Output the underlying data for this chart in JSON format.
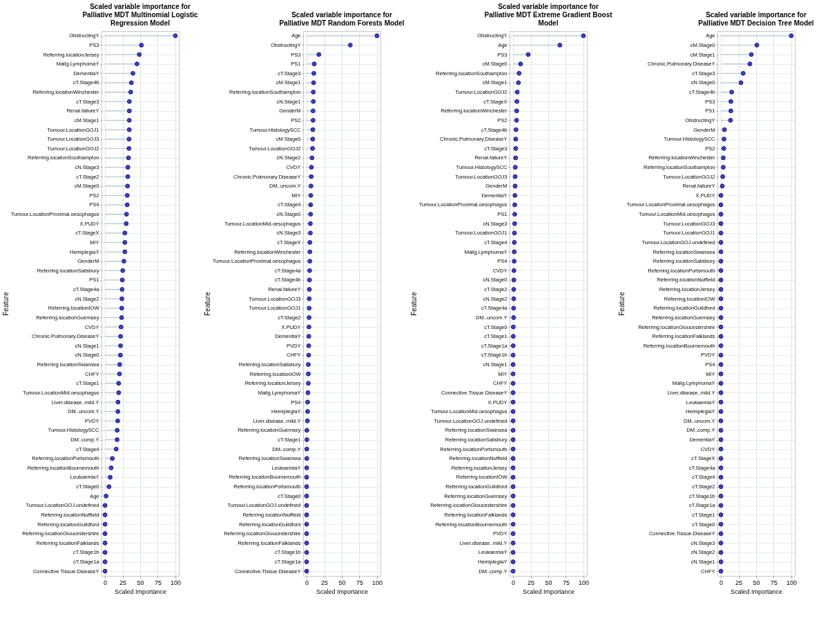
{
  "chart_data": [
    {
      "type": "lollipop",
      "orientation": "horizontal",
      "title": "Scaled variable importance for Palliative MDT Multinomial Logistic Regression Model",
      "xlabel": "Scaled Importance",
      "ylabel": "Feature",
      "xlim": [
        -5,
        105
      ],
      "xticks": [
        0,
        25,
        50,
        75,
        100
      ],
      "grid": true,
      "categories": [
        "ObstructingY",
        "PS3",
        "Referring.locationJersey",
        "Malig.LymphomaY",
        "DementiaY",
        "cT.Stage4b",
        "Referring.locationWinchester",
        "cT.Stage3",
        "Renal.failureY",
        "cM.Stage1",
        "Tumour.LocationGOJ1",
        "Tumour.LocationGOJ3",
        "Tumour.LocationGOJ2",
        "Referring.locationSouthampton",
        "cN.Stage3",
        "cT.Stage2",
        "cM.Stage0",
        "PS2",
        "PS4",
        "Tumour.LocationProximal.oesophagus",
        "X.PUDY",
        "cT.StageX",
        "MIY",
        "HemiplegiaY",
        "GenderM",
        "Referring.locationSalisbury",
        "PS1",
        "cT.Stage4a",
        "cN.Stage2",
        "Referring.locationIOW",
        "Referring.locationGuernsey",
        "CVDY",
        "Chronic.Pulmonary.DiseaseY",
        "cN.Stage1",
        "cN.Stage0",
        "Referring.locationSwansea",
        "CHFY",
        "cT.Stage1",
        "Tumour.LocationMid.oesophagus",
        "Liver.disease..mild.Y",
        "DM..uncom.Y",
        "PVDY",
        "Tumour.HistologySCC",
        "DM..comp.Y",
        "cT.Stage4",
        "Referring.locationPortsmouth",
        "Referring.locationBournemouth",
        "LeukaemiaY",
        "cT.Stage0",
        "Age",
        "Tumour.LocationGOJ.undefined",
        "Referring.locationNuffield",
        "Referring.locationGuildford",
        "Referring.locationGloucestershire",
        "Referring.locationFalklands",
        "cT.Stage1b",
        "cT.Stage1a",
        "Connective.Tissue.DiseaseY"
      ],
      "series": [
        {
          "color": "#3c3cd6",
          "values": [
            100,
            51.8,
            48.7,
            45.5,
            39.7,
            37.5,
            36.5,
            34.6,
            34.6,
            34.5,
            34.5,
            34.2,
            34.0,
            33.4,
            32.5,
            32.4,
            32.0,
            31.6,
            31.5,
            30.6,
            30.2,
            28.2,
            28.2,
            28.2,
            26.9,
            25.2,
            24.6,
            24.3,
            24.0,
            23.8,
            23.6,
            22.8,
            22.1,
            22.1,
            21.9,
            20.9,
            20.6,
            19.4,
            19.4,
            18.5,
            18.3,
            18.1,
            17.3,
            17.2,
            15.9,
            10.4,
            8.7,
            7.3,
            5.6,
            1.5,
            0,
            0,
            0,
            0,
            0,
            0,
            0,
            0
          ]
        }
      ]
    },
    {
      "type": "lollipop",
      "orientation": "horizontal",
      "title": "Scaled variable importance for Palliative MDT Random Forests Model",
      "xlabel": "Scaled Importance",
      "ylabel": "Feature",
      "xlim": [
        -5,
        105
      ],
      "xticks": [
        0,
        25,
        50,
        75,
        100
      ],
      "grid": true,
      "categories": [
        "Age",
        "ObstructingY",
        "PS3",
        "PS1",
        "cT.Stage3",
        "cM.Stage1",
        "Referring.locationSouthampton",
        "cN.Stage1",
        "GenderM",
        "PS2",
        "Tumour.HistologySCC",
        "cM.Stage0",
        "Tumour.LocationGOJ2",
        "cN.Stage2",
        "CVDY",
        "Chronic.Pulmonary.DiseaseY",
        "DM..uncom.Y",
        "MIY",
        "cT.Stage4",
        "cN.Stage0",
        "Tumour.LocationMid.oesophagus",
        "cN.Stage3",
        "cT.StageX",
        "Referring.locationWinchester",
        "Tumour.LocationProximal.oesophagus",
        "cT.Stage4a",
        "cT.Stage4b",
        "Renal.failureY",
        "Tumour.LocationGOJ3",
        "Tumour.LocationGOJ1",
        "cT.Stage2",
        "X.PUDY",
        "DementiaY",
        "PVDY",
        "CHFY",
        "Referring.locationSalisbury",
        "Referring.locationIOW",
        "Referring.locationJersey",
        "Malig.LymphomaY",
        "PS4",
        "HemiplegiaY",
        "Liver.disease..mild.Y",
        "Referring.locationGuernsey",
        "cT.Stage1",
        "DM..comp.Y",
        "Referring.locationSwansea",
        "LeukaemiaY",
        "Referring.locationBournemouth",
        "Referring.locationPortsmouth",
        "cT.Stage0",
        "Tumour.LocationGOJ.undefined",
        "Referring.locationNuffield",
        "Referring.locationGuildford",
        "Referring.locationGloucestershire",
        "Referring.locationFalklands",
        "cT.Stage1b",
        "cT.Stage1a",
        "Connective.Tissue.DiseaseY"
      ],
      "series": [
        {
          "color": "#3c3cd6",
          "values": [
            100,
            62.1,
            17.4,
            10.8,
            10.2,
            9.9,
            9.5,
            9.5,
            9.1,
            9.1,
            8.8,
            8.6,
            8.4,
            7.6,
            6.8,
            6.5,
            6.2,
            5.9,
            5.7,
            5.6,
            5.3,
            5.3,
            4.6,
            4.6,
            4.5,
            4.3,
            4.1,
            3.9,
            3.7,
            3.6,
            3.5,
            3.3,
            3.1,
            3.0,
            2.9,
            2.4,
            2.4,
            2.4,
            1.9,
            1.4,
            1.4,
            1.1,
            0.3,
            0.3,
            0.2,
            0.2,
            0.1,
            0,
            0,
            0,
            0,
            0,
            0,
            0,
            0,
            0,
            0,
            0
          ]
        }
      ]
    },
    {
      "type": "lollipop",
      "orientation": "horizontal",
      "title": "Scaled variable importance for Palliative MDT Extreme Gradient Boost Model",
      "xlabel": "Scaled Importance",
      "ylabel": "Feature",
      "xlim": [
        -5,
        105
      ],
      "xticks": [
        0,
        25,
        50,
        75,
        100
      ],
      "grid": true,
      "categories": [
        "ObstructingY",
        "Age",
        "PS3",
        "cM.Stage0",
        "Referring.locationSouthampton",
        "cM.Stage1",
        "Tumour.LocationGOJ2",
        "cT.StageX",
        "Referring.locationWinchester",
        "PS2",
        "cT.Stage4b",
        "Chronic.Pulmonary.DiseaseY",
        "cT.Stage3",
        "Renal.failureY",
        "Tumour.HistologySCC",
        "Tumour.LocationGOJ3",
        "GenderM",
        "DementiaY",
        "Tumour.LocationProximal.oesophagus",
        "PS1",
        "cN.Stage3",
        "Tumour.LocationGOJ1",
        "cT.Stage4",
        "Malig.LymphomaY",
        "PS4",
        "CVDY",
        "cN.Stage0",
        "cT.Stage2",
        "cN.Stage2",
        "cT.Stage4a",
        "DM..uncom.Y",
        "cT.Stage0",
        "cT.Stage1",
        "cT.Stage1a",
        "cT.Stage1b",
        "cN.Stage1",
        "MIY",
        "CHFY",
        "Connective.Tissue.DiseaseY",
        "X.PUDY",
        "Tumour.LocationMid.oesophagus",
        "Tumour.LocationGOJ.undefined",
        "Referring.locationSwansea",
        "Referring.locationSalisbury",
        "Referring.locationPortsmouth",
        "Referring.locationNuffield",
        "Referring.locationJersey",
        "Referring.locationIOW",
        "Referring.locationGuildford",
        "Referring.locationGuernsey",
        "Referring.locationGloucestershire",
        "Referring.locationFalklands",
        "Referring.locationBournemouth",
        "PVDY",
        "Liver.disease..mild.Y",
        "LeukaemiaY",
        "HemiplegiaY",
        "DM..comp.Y"
      ],
      "series": [
        {
          "color": "#3c3cd6",
          "values": [
            100,
            66.5,
            21.5,
            10.7,
            8.5,
            7.6,
            5.9,
            5.4,
            5.1,
            4.9,
            4.2,
            3.8,
            3.8,
            3.6,
            3.1,
            2.9,
            2.8,
            2.6,
            2.4,
            2.3,
            2.2,
            1.9,
            1.7,
            1.6,
            1.5,
            1.2,
            1.1,
            0.9,
            0.9,
            0.7,
            0.7,
            0.3,
            0.2,
            0.1,
            0,
            0,
            0,
            0,
            0,
            0,
            0,
            0,
            0,
            0,
            0,
            0,
            0,
            0,
            0,
            0,
            0,
            0,
            0,
            0,
            0,
            0,
            0,
            0
          ]
        }
      ]
    },
    {
      "type": "lollipop",
      "orientation": "horizontal",
      "title": "Scaled variable importance for Palliative MDT Decision Tree Model",
      "xlabel": "Scaled Importance",
      "ylabel": "Feature",
      "xlim": [
        -5,
        105
      ],
      "xticks": [
        0,
        25,
        50,
        75,
        100
      ],
      "grid": true,
      "categories": [
        "Age",
        "cM.Stage0",
        "cM.Stage1",
        "Chronic.Pulmonary.DiseaseY",
        "cT.Stage3",
        "cN.Stage0",
        "cT.Stage4b",
        "PS3",
        "PS1",
        "ObstructingY",
        "GenderM",
        "Tumour.HistologySCC",
        "PS2",
        "Referring.locationWinchester",
        "Referring.locationSouthampton",
        "Tumour.LocationGOJ2",
        "Renal.failureY",
        "X.PUDY",
        "Tumour.LocationProximal.oesophagus",
        "Tumour.LocationMid.oesophagus",
        "Tumour.LocationGOJ3",
        "Tumour.LocationGOJ1",
        "Tumour.LocationGOJ.undefined",
        "Referring.locationSwansea",
        "Referring.locationSalisbury",
        "Referring.locationPortsmouth",
        "Referring.locationNuffield",
        "Referring.locationJersey",
        "Referring.locationIOW",
        "Referring.locationGuildford",
        "Referring.locationGuernsey",
        "Referring.locationGloucestershire",
        "Referring.locationFalklands",
        "Referring.locationBournemouth",
        "PVDY",
        "PS4",
        "MIY",
        "Malig.LymphomaY",
        "Liver.disease..mild.Y",
        "LeukaemiaY",
        "HemiplegiaY",
        "DM..uncom.Y",
        "DM..comp.Y",
        "DementiaY",
        "CVDY",
        "cT.StageX",
        "cT.Stage4a",
        "cT.Stage4",
        "cT.Stage2",
        "cT.Stage1b",
        "cT.Stage1a",
        "cT.Stage1",
        "cT.Stage0",
        "Connective.Tissue.DiseaseY",
        "cN.Stage3",
        "cN.Stage2",
        "cN.Stage1",
        "CHFY"
      ],
      "series": [
        {
          "color": "#3c3cd6",
          "values": [
            100,
            51.1,
            43.2,
            41.2,
            31.6,
            28.5,
            15.3,
            14.1,
            14.1,
            13.6,
            5.0,
            4.4,
            4.1,
            3.3,
            3.3,
            2.5,
            1.9,
            0,
            0,
            0,
            0,
            0,
            0,
            0,
            0,
            0,
            0,
            0,
            0,
            0,
            0,
            0,
            0,
            0,
            0,
            0,
            0,
            0,
            0,
            0,
            0,
            0,
            0,
            0,
            0,
            0,
            0,
            0,
            0,
            0,
            0,
            0,
            0,
            0,
            0,
            0,
            0,
            0
          ]
        }
      ]
    }
  ]
}
